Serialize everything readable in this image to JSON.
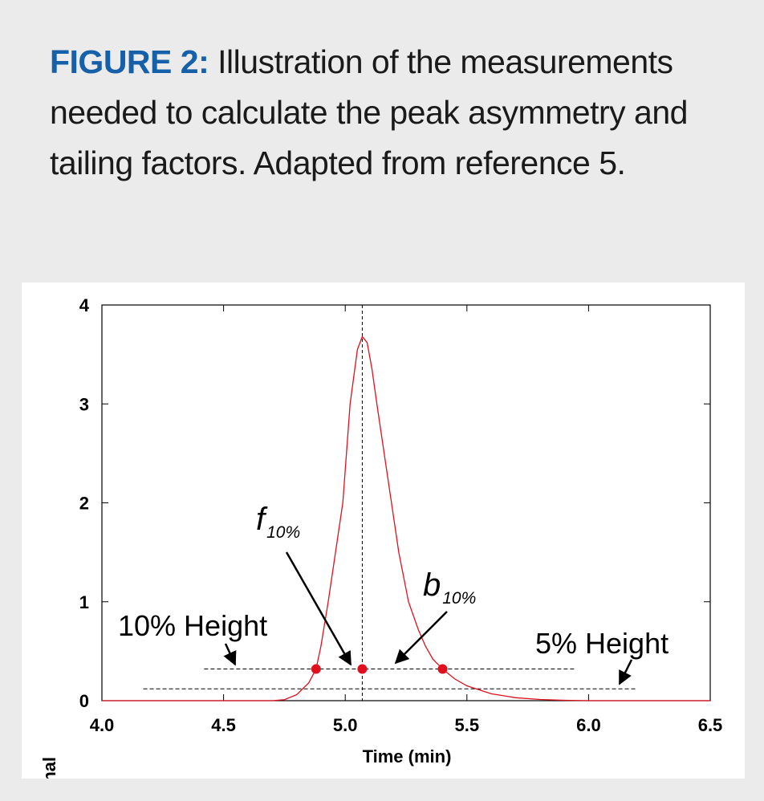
{
  "chart_data": {
    "type": "line",
    "title_label": "FIGURE 2:",
    "title": "Illustration of the measurements needed to calculate the peak asymmetry and tailing factors. Adapted from reference 5.",
    "x_label": "Time (min)",
    "y_label": "Signal",
    "xlim": [
      4.0,
      6.5
    ],
    "ylim": [
      0,
      4
    ],
    "xticks": [
      {
        "value": 4.0,
        "label": "4.0"
      },
      {
        "value": 4.5,
        "label": "4.5"
      },
      {
        "value": 5.0,
        "label": "5.0"
      },
      {
        "value": 5.5,
        "label": "5.5"
      },
      {
        "value": 6.0,
        "label": "6.0"
      },
      {
        "value": 6.5,
        "label": "6.5"
      }
    ],
    "yticks": [
      0,
      1,
      2,
      3,
      4
    ],
    "series": [
      {
        "color": "#e0101e",
        "x": [
          4.0,
          4.7,
          4.75,
          4.8,
          4.85,
          4.88,
          4.9,
          4.93,
          4.96,
          4.99,
          5.02,
          5.05,
          5.07,
          5.09,
          5.11,
          5.13,
          5.16,
          5.19,
          5.22,
          5.26,
          5.3,
          5.33,
          5.36,
          5.4,
          5.45,
          5.5,
          5.6,
          5.7,
          5.8,
          5.9,
          6.0,
          6.5
        ],
        "values": [
          0,
          0,
          0.01,
          0.06,
          0.18,
          0.32,
          0.55,
          1.0,
          1.5,
          2.0,
          3.0,
          3.55,
          3.68,
          3.62,
          3.35,
          3.0,
          2.5,
          2.0,
          1.5,
          1.0,
          0.72,
          0.55,
          0.42,
          0.32,
          0.22,
          0.15,
          0.07,
          0.03,
          0.012,
          0.004,
          0,
          0
        ]
      }
    ],
    "points": {
      "color": "#e0101e",
      "x": [
        4.88,
        5.07,
        5.4
      ],
      "values": [
        0.32,
        0.32,
        0.32
      ]
    },
    "peak_line": {
      "x": 5.07
    },
    "reference_lines": [
      {
        "label": "10% Height",
        "y": 0.32,
        "x": [
          4.42,
          5.95
        ]
      },
      {
        "label": "5% Height",
        "y": 0.12,
        "x": [
          4.17,
          6.2
        ]
      }
    ],
    "annotations": [
      {
        "text": "f",
        "subscript": "10%"
      },
      {
        "text": "b",
        "subscript": "10%"
      }
    ]
  }
}
